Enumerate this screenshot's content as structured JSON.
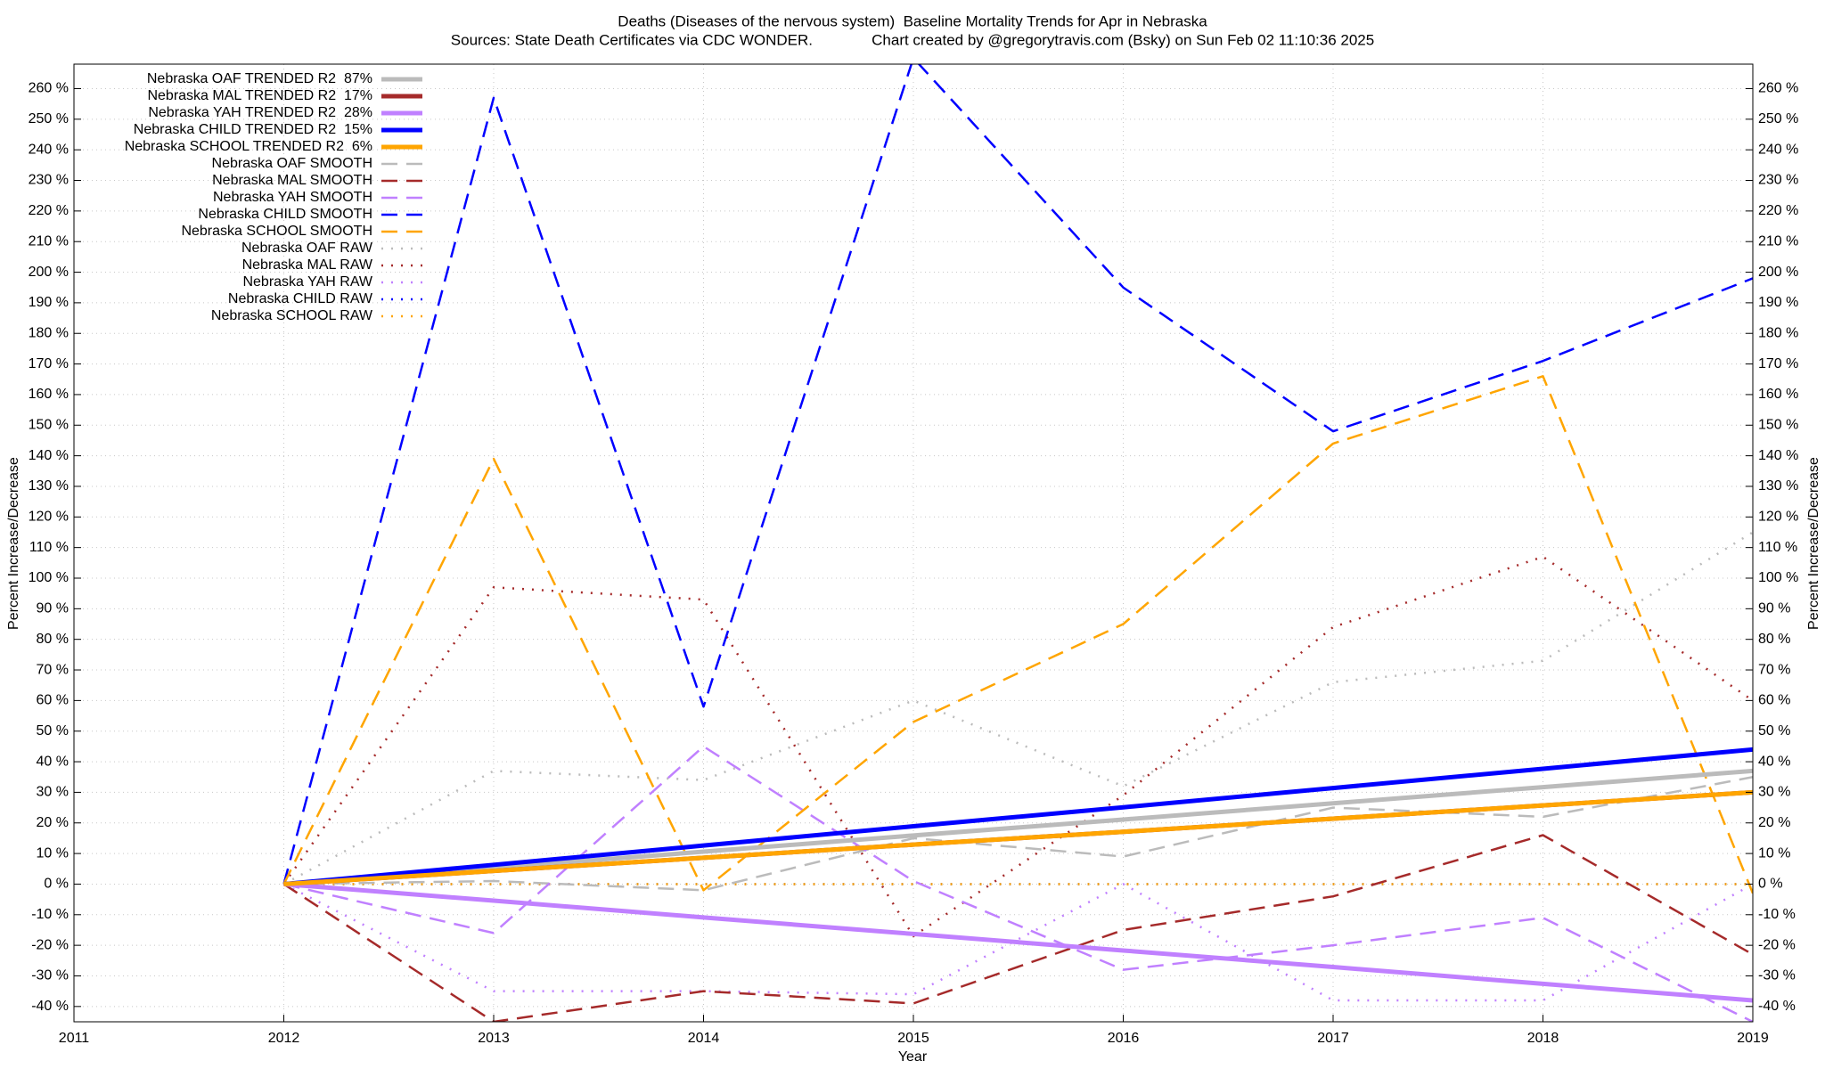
{
  "chart_data": {
    "type": "line",
    "title": "Deaths (Diseases of the nervous system)  Baseline Mortality Trends for Apr in Nebraska",
    "subtitle": "Sources: State Death Certificates via CDC WONDER.              Chart created by @gregorytravis.com (Bsky) on Sun Feb 02 11:10:36 2025",
    "x_label": "Year",
    "y_label": "Percent Increase/Decrease",
    "y2_label": "Percent Increase/Decrease",
    "x": [
      2012,
      2013,
      2014,
      2015,
      2016,
      2017,
      2018,
      2019
    ],
    "xlim": [
      2011,
      2019
    ],
    "xticks": [
      2011,
      2012,
      2013,
      2014,
      2015,
      2016,
      2017,
      2018,
      2019
    ],
    "ylim": [
      -45,
      268
    ],
    "yticks": [
      {
        "value": -40,
        "label": "-40 %"
      },
      {
        "value": -30,
        "label": "-30 %"
      },
      {
        "value": -20,
        "label": "-20 %"
      },
      {
        "value": -10,
        "label": "-10 %"
      },
      {
        "value": 0,
        "label": "0 %"
      },
      {
        "value": 10,
        "label": "10 %"
      },
      {
        "value": 20,
        "label": "20 %"
      },
      {
        "value": 30,
        "label": "30 %"
      },
      {
        "value": 40,
        "label": "40 %"
      },
      {
        "value": 50,
        "label": "50 %"
      },
      {
        "value": 60,
        "label": "60 %"
      },
      {
        "value": 70,
        "label": "70 %"
      },
      {
        "value": 80,
        "label": "80 %"
      },
      {
        "value": 90,
        "label": "90 %"
      },
      {
        "value": 100,
        "label": "100 %"
      },
      {
        "value": 110,
        "label": "110 %"
      },
      {
        "value": 120,
        "label": "120 %"
      },
      {
        "value": 130,
        "label": "130 %"
      },
      {
        "value": 140,
        "label": "140 %"
      },
      {
        "value": 150,
        "label": "150 %"
      },
      {
        "value": 160,
        "label": "160 %"
      },
      {
        "value": 170,
        "label": "170 %"
      },
      {
        "value": 180,
        "label": "180 %"
      },
      {
        "value": 190,
        "label": "190 %"
      },
      {
        "value": 200,
        "label": "200 %"
      },
      {
        "value": 210,
        "label": "210 %"
      },
      {
        "value": 220,
        "label": "220 %"
      },
      {
        "value": 230,
        "label": "230 %"
      },
      {
        "value": 240,
        "label": "240 %"
      },
      {
        "value": 250,
        "label": "250 %"
      },
      {
        "value": 260,
        "label": "260 %"
      }
    ],
    "y2lim": [
      -45,
      268
    ],
    "y2ticks": [
      {
        "value": -40,
        "label": "-40 %"
      },
      {
        "value": -30,
        "label": "-30 %"
      },
      {
        "value": -20,
        "label": "-20 %"
      },
      {
        "value": -10,
        "label": "-10 %"
      },
      {
        "value": 0,
        "label": "0 %"
      },
      {
        "value": 10,
        "label": "10 %"
      },
      {
        "value": 20,
        "label": "20 %"
      },
      {
        "value": 30,
        "label": "30 %"
      },
      {
        "value": 40,
        "label": "40 %"
      },
      {
        "value": 50,
        "label": "50 %"
      },
      {
        "value": 60,
        "label": "60 %"
      },
      {
        "value": 70,
        "label": "70 %"
      },
      {
        "value": 80,
        "label": "80 %"
      },
      {
        "value": 90,
        "label": "90 %"
      },
      {
        "value": 100,
        "label": "100 %"
      },
      {
        "value": 110,
        "label": "110 %"
      },
      {
        "value": 120,
        "label": "120 %"
      },
      {
        "value": 130,
        "label": "130 %"
      },
      {
        "value": 140,
        "label": "140 %"
      },
      {
        "value": 150,
        "label": "150 %"
      },
      {
        "value": 160,
        "label": "160 %"
      },
      {
        "value": 170,
        "label": "170 %"
      },
      {
        "value": 180,
        "label": "180 %"
      },
      {
        "value": 190,
        "label": "190 %"
      },
      {
        "value": 200,
        "label": "200 %"
      },
      {
        "value": 210,
        "label": "210 %"
      },
      {
        "value": 220,
        "label": "220 %"
      },
      {
        "value": 230,
        "label": "230 %"
      },
      {
        "value": 240,
        "label": "240 %"
      },
      {
        "value": 250,
        "label": "250 %"
      },
      {
        "value": 260,
        "label": "260 %"
      }
    ],
    "grid": true,
    "legend": "top-left",
    "series": [
      {
        "name": "Nebraska OAF TRENDED R2  87%",
        "color": "#bbbbbb",
        "dash": "solid",
        "values": [
          0,
          5.3,
          10.6,
          15.9,
          21.1,
          26.4,
          31.7,
          37
        ]
      },
      {
        "name": "Nebraska MAL TRENDED R2  17%",
        "color": "#a52a2a",
        "dash": "solid",
        "values": [
          0,
          4.3,
          8.6,
          12.9,
          17.1,
          21.4,
          25.7,
          30
        ]
      },
      {
        "name": "Nebraska YAH TRENDED R2  28%",
        "color": "#c080ff",
        "dash": "solid",
        "values": [
          0,
          -5.4,
          -10.9,
          -16.3,
          -21.7,
          -27.1,
          -32.6,
          -38
        ]
      },
      {
        "name": "Nebraska CHILD TRENDED R2  15%",
        "color": "#0000ff",
        "dash": "solid",
        "values": [
          0,
          6.3,
          12.6,
          18.9,
          25.1,
          31.4,
          37.7,
          44
        ]
      },
      {
        "name": "Nebraska SCHOOL TRENDED R2  6%",
        "color": "#ffa500",
        "dash": "solid",
        "values": [
          0,
          4.3,
          8.6,
          12.9,
          17.1,
          21.4,
          25.7,
          30
        ]
      },
      {
        "name": "Nebraska OAF SMOOTH",
        "color": "#bbbbbb",
        "dash": "dashed",
        "values": [
          0,
          1,
          -2,
          15,
          9,
          25,
          22,
          35
        ]
      },
      {
        "name": "Nebraska MAL SMOOTH",
        "color": "#a52a2a",
        "dash": "dashed",
        "values": [
          0,
          -45,
          -35,
          -39,
          -15,
          -4,
          16,
          -23
        ]
      },
      {
        "name": "Nebraska YAH SMOOTH",
        "color": "#c080ff",
        "dash": "dashed",
        "values": [
          0,
          -16,
          45,
          1,
          -28,
          -20,
          -11,
          -45
        ]
      },
      {
        "name": "Nebraska CHILD SMOOTH",
        "color": "#0000ff",
        "dash": "dashed",
        "values": [
          0,
          257,
          58,
          270,
          195,
          148,
          171,
          198
        ]
      },
      {
        "name": "Nebraska SCHOOL SMOOTH",
        "color": "#ffa500",
        "dash": "dashed",
        "values": [
          0,
          139,
          -2,
          53,
          85,
          144,
          166,
          -3
        ]
      },
      {
        "name": "Nebraska OAF RAW",
        "color": "#bbbbbb",
        "dash": "dotted",
        "values": [
          0,
          37,
          34,
          60,
          32,
          66,
          73,
          115
        ]
      },
      {
        "name": "Nebraska MAL RAW",
        "color": "#a52a2a",
        "dash": "dotted",
        "values": [
          0,
          97,
          93,
          -17,
          29,
          84,
          107,
          60
        ]
      },
      {
        "name": "Nebraska YAH RAW",
        "color": "#c080ff",
        "dash": "dotted",
        "values": [
          0,
          -35,
          -35,
          -36,
          0,
          -38,
          -38,
          0
        ]
      },
      {
        "name": "Nebraska CHILD RAW",
        "color": "#0000ff",
        "dash": "dotted",
        "values": [
          0,
          0,
          0,
          0,
          0,
          0,
          0,
          0
        ]
      },
      {
        "name": "Nebraska SCHOOL RAW",
        "color": "#ffa500",
        "dash": "dotted",
        "values": [
          0,
          0,
          0,
          0,
          0,
          0,
          0,
          0
        ]
      }
    ]
  }
}
